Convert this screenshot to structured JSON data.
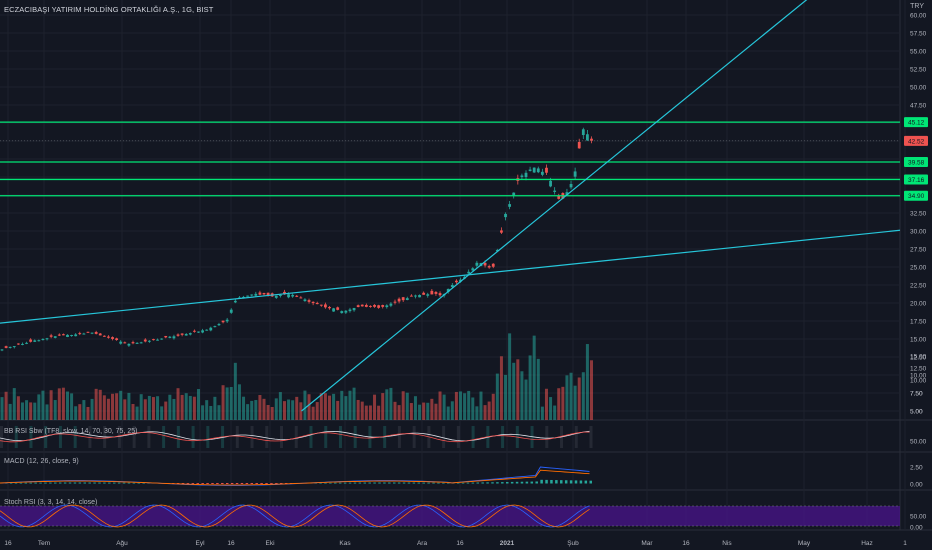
{
  "header": {
    "symbol_title": "ECZACIBAŞI YATIRIM HOLDİNG ORTAKLIĞI A.Ş., 1G, BIST",
    "currency": "TRY"
  },
  "indicators": {
    "rsi_label": "BB RSI Sbw (TF8, slow, 14, 70, 30, 75, 25)",
    "macd_label": "MACD (12, 26, close, 9)",
    "stoch_label": "Stoch RSI (3, 3, 14, 14, close)"
  },
  "colors": {
    "background": "#131722",
    "up": "#26a69a",
    "down": "#ef5350",
    "support_lines": "#00e676",
    "trend_lines": "#26c6da",
    "stoch_band": "#4a148c"
  },
  "chart_data": {
    "type": "candlestick",
    "price_axis": {
      "ylim": [
        3.5,
        62.5
      ],
      "ticks": [
        "60.00",
        "57.50",
        "55.00",
        "52.50",
        "50.00",
        "47.50",
        "45.00",
        "42.50",
        "40.00",
        "37.50",
        "35.00",
        "32.50",
        "30.00",
        "27.50",
        "25.00",
        "22.50",
        "20.00",
        "17.50",
        "15.00",
        "12.50",
        "10.00",
        "7.50",
        "5.00"
      ]
    },
    "time_axis": {
      "ticks": [
        "16",
        "Tem",
        "Ağu",
        "Eyl",
        "16",
        "Eki",
        "Kas",
        "Ara",
        "16",
        "2021",
        "Şub",
        "Mar",
        "16",
        "Nis",
        "May",
        "Haz",
        "1"
      ]
    },
    "price_labels": [
      {
        "value": 45.12,
        "text": "45.12",
        "color": "#00e676"
      },
      {
        "value": 42.52,
        "text": "42.52",
        "color": "#ef5350"
      },
      {
        "value": 39.58,
        "text": "39.58",
        "color": "#00e676"
      },
      {
        "value": 37.16,
        "text": "37.16",
        "color": "#00e676"
      },
      {
        "value": 34.9,
        "text": "34.90",
        "color": "#00e676"
      }
    ],
    "horizontal_levels": [
      45.12,
      39.58,
      37.16,
      34.9
    ],
    "trend_lines": [
      {
        "from": [
          0,
          17.2
        ],
        "to": [
          1,
          30.1
        ]
      },
      {
        "from": [
          0.335,
          5.0
        ],
        "to": [
          0.9,
          62.5
        ]
      }
    ],
    "price_path": [
      [
        0.0,
        13.6
      ],
      [
        0.03,
        14.6
      ],
      [
        0.06,
        15.4
      ],
      [
        0.1,
        15.9
      ],
      [
        0.14,
        14.3
      ],
      [
        0.17,
        14.9
      ],
      [
        0.2,
        15.6
      ],
      [
        0.23,
        16.4
      ],
      [
        0.25,
        17.6
      ],
      [
        0.26,
        20.6
      ],
      [
        0.28,
        21.3
      ],
      [
        0.3,
        21.0
      ],
      [
        0.32,
        21.2
      ],
      [
        0.34,
        20.3
      ],
      [
        0.36,
        19.4
      ],
      [
        0.38,
        18.9
      ],
      [
        0.4,
        19.6
      ],
      [
        0.42,
        19.3
      ],
      [
        0.44,
        20.2
      ],
      [
        0.46,
        21.1
      ],
      [
        0.48,
        21.3
      ],
      [
        0.49,
        21.0
      ],
      [
        0.5,
        22.5
      ],
      [
        0.515,
        23.8
      ],
      [
        0.53,
        25.8
      ],
      [
        0.545,
        24.6
      ],
      [
        0.56,
        32.5
      ],
      [
        0.575,
        37.6
      ],
      [
        0.59,
        38.9
      ],
      [
        0.605,
        38.1
      ],
      [
        0.62,
        34.0
      ],
      [
        0.635,
        37.0
      ],
      [
        0.645,
        44.2
      ],
      [
        0.655,
        42.5
      ]
    ],
    "volume_axis": {
      "ticks": [
        "15.00",
        "12.50",
        "10.00",
        "7.50",
        "5.00"
      ]
    },
    "rsi_axis": {
      "ticks": [
        "50.00"
      ]
    },
    "macd_axis": {
      "ticks": [
        "2.50",
        "0.00"
      ]
    },
    "stoch_axis": {
      "ticks": [
        "50.00",
        "0.00"
      ]
    }
  }
}
